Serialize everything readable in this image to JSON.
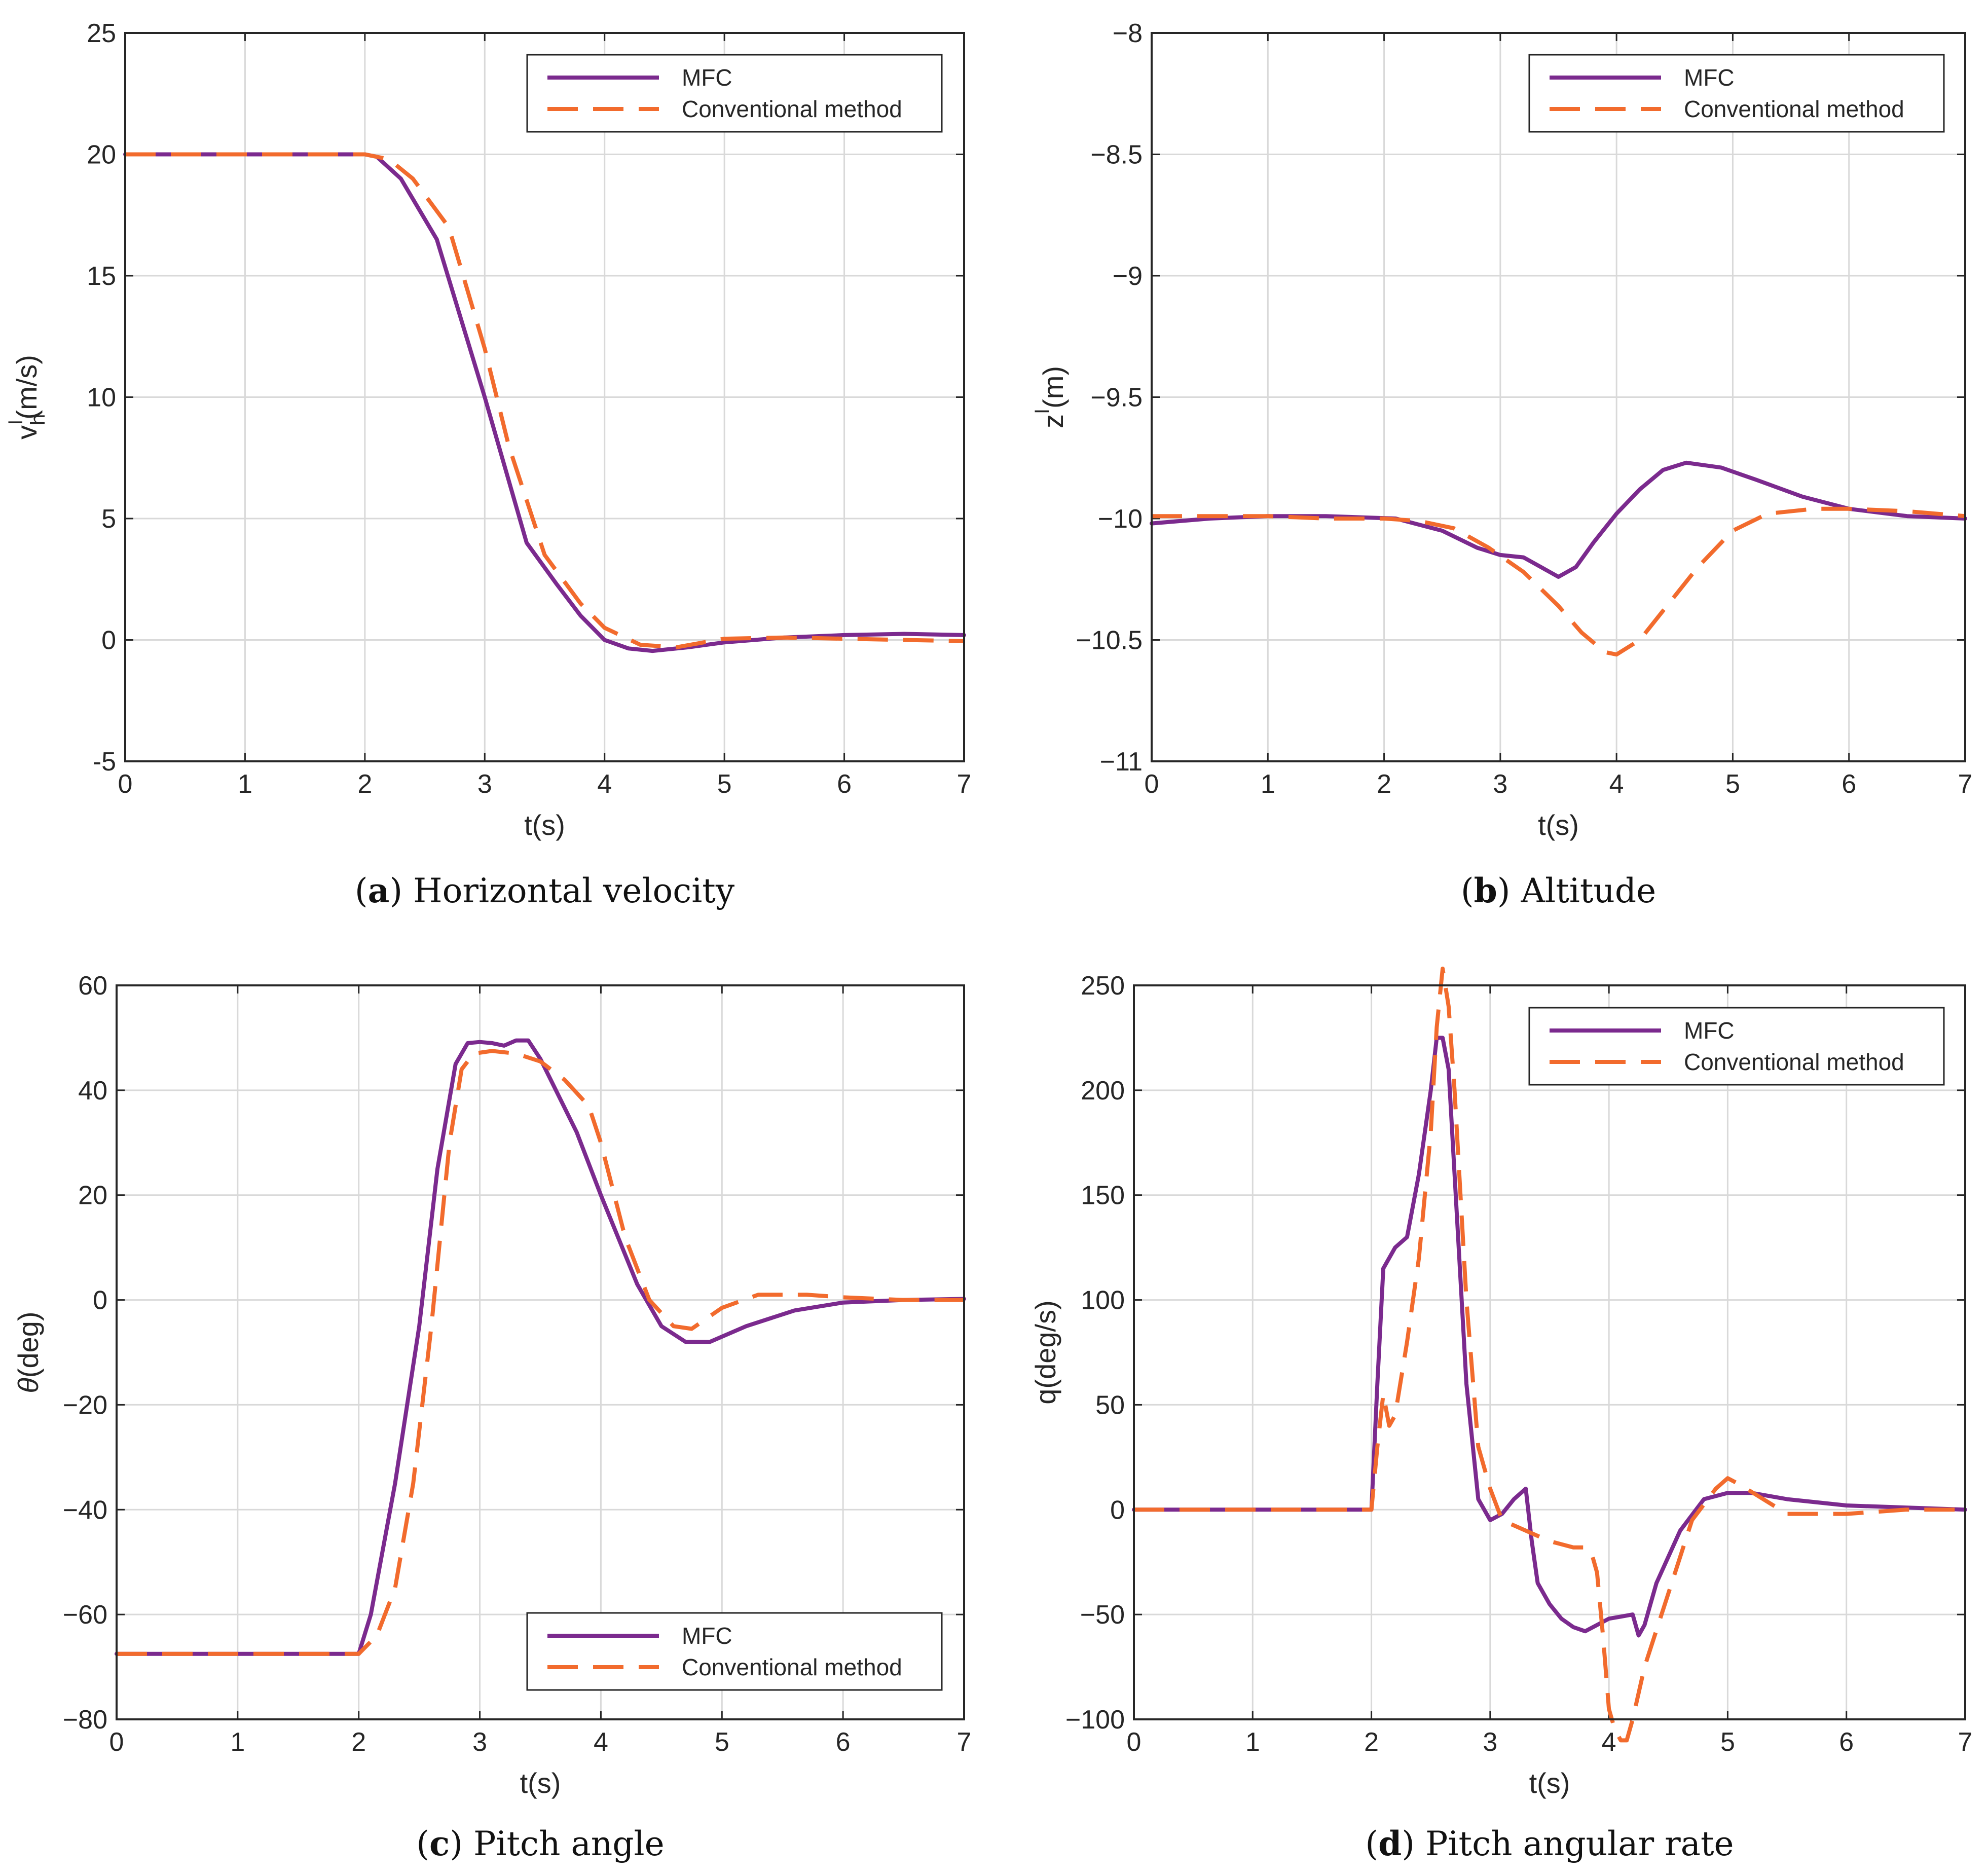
{
  "colors": {
    "mfc": "#7b2a8e",
    "conventional": "#f26b2d",
    "grid": "#d9d9d9",
    "axis": "#262626"
  },
  "chart_data": [
    {
      "id": "a",
      "type": "line",
      "caption_letter": "a",
      "caption_text": " Horizontal velocity",
      "xlabel": "t(s)",
      "ylabel": "v",
      "ylabel_sup": "I",
      "ylabel_sub": "h",
      "ylabel_unit": "(m/s)",
      "xlim": [
        0,
        7
      ],
      "ylim": [
        -5,
        25
      ],
      "xticks": [
        "0",
        "1",
        "2",
        "3",
        "4",
        "5",
        "6",
        "7"
      ],
      "yticks": [
        "-5",
        "0",
        "5",
        "10",
        "15",
        "20",
        "25"
      ],
      "ytick_values": [
        -5,
        0,
        5,
        10,
        15,
        20,
        25
      ],
      "legend": [
        "MFC",
        "Conventional method"
      ],
      "legend_position": "top-right",
      "series": [
        {
          "name": "MFC",
          "style": "solid",
          "x": [
            0,
            1,
            2,
            2.1,
            2.3,
            2.6,
            3.0,
            3.35,
            3.6,
            3.8,
            4.0,
            4.2,
            4.4,
            4.7,
            5.0,
            5.5,
            6.0,
            6.5,
            7.0
          ],
          "y": [
            20,
            20,
            20,
            19.9,
            19,
            16.5,
            10,
            4,
            2.3,
            1.0,
            0,
            -0.35,
            -0.45,
            -0.3,
            -0.1,
            0.1,
            0.2,
            0.25,
            0.2
          ]
        },
        {
          "name": "Conventional method",
          "style": "dashed",
          "x": [
            0,
            1,
            2,
            2.2,
            2.4,
            2.7,
            3.0,
            3.2,
            3.5,
            3.8,
            4.0,
            4.3,
            4.6,
            5.0,
            5.5,
            6.0,
            6.5,
            7.0
          ],
          "y": [
            20,
            20,
            20,
            19.8,
            19,
            17,
            12,
            8,
            3.5,
            1.5,
            0.5,
            -0.2,
            -0.3,
            0.05,
            0.1,
            0.05,
            0,
            -0.05
          ]
        }
      ]
    },
    {
      "id": "b",
      "type": "line",
      "caption_letter": "b",
      "caption_text": " Altitude",
      "xlabel": "t(s)",
      "ylabel": "z",
      "ylabel_sup": "I",
      "ylabel_sub": "",
      "ylabel_unit": "(m)",
      "xlim": [
        0,
        7
      ],
      "ylim": [
        -11,
        -8
      ],
      "xticks": [
        "0",
        "1",
        "2",
        "3",
        "4",
        "5",
        "6",
        "7"
      ],
      "yticks": [
        "−11",
        "−10.5",
        "−10",
        "−9.5",
        "−9",
        "−8.5",
        "−8"
      ],
      "ytick_values": [
        -11,
        -10.5,
        -10,
        -9.5,
        -9,
        -8.5,
        -8
      ],
      "legend": [
        "MFC",
        "Conventional method"
      ],
      "legend_position": "top-right",
      "series": [
        {
          "name": "MFC",
          "style": "solid",
          "x": [
            0,
            0.5,
            1,
            1.5,
            2.1,
            2.5,
            2.8,
            3.0,
            3.2,
            3.35,
            3.5,
            3.65,
            3.8,
            4.0,
            4.2,
            4.4,
            4.6,
            4.9,
            5.2,
            5.6,
            6.0,
            6.5,
            7.0
          ],
          "y": [
            -10.02,
            -10.0,
            -9.99,
            -9.99,
            -10.0,
            -10.05,
            -10.12,
            -10.15,
            -10.16,
            -10.2,
            -10.24,
            -10.2,
            -10.1,
            -9.98,
            -9.88,
            -9.8,
            -9.77,
            -9.79,
            -9.84,
            -9.91,
            -9.96,
            -9.99,
            -10.0
          ]
        },
        {
          "name": "Conventional method",
          "style": "dashed",
          "x": [
            0,
            0.5,
            1,
            1.5,
            2.0,
            2.3,
            2.6,
            2.9,
            3.2,
            3.5,
            3.7,
            3.9,
            4.0,
            4.2,
            4.4,
            4.7,
            5.0,
            5.3,
            5.7,
            6.0,
            6.5,
            7.0
          ],
          "y": [
            -9.99,
            -9.99,
            -9.99,
            -10.0,
            -10.0,
            -10.01,
            -10.04,
            -10.12,
            -10.22,
            -10.36,
            -10.47,
            -10.55,
            -10.56,
            -10.5,
            -10.38,
            -10.2,
            -10.05,
            -9.98,
            -9.96,
            -9.96,
            -9.97,
            -9.99
          ]
        }
      ]
    },
    {
      "id": "c",
      "type": "line",
      "caption_letter": "c",
      "caption_text": " Pitch angle",
      "xlabel": "t(s)",
      "ylabel": "θ",
      "ylabel_sup": "",
      "ylabel_sub": "",
      "ylabel_unit": "(deg)",
      "xlim": [
        0,
        7
      ],
      "ylim": [
        -80,
        60
      ],
      "xticks": [
        "0",
        "1",
        "2",
        "3",
        "4",
        "5",
        "6",
        "7"
      ],
      "yticks": [
        "−80",
        "−60",
        "−40",
        "−20",
        "0",
        "20",
        "40",
        "60"
      ],
      "ytick_values": [
        -80,
        -60,
        -40,
        -20,
        0,
        20,
        40,
        60
      ],
      "legend": [
        "MFC",
        "Conventional method"
      ],
      "legend_position": "bottom-right",
      "series": [
        {
          "name": "MFC",
          "style": "solid",
          "x": [
            0,
            1,
            2.0,
            2.1,
            2.3,
            2.5,
            2.65,
            2.8,
            2.9,
            3.0,
            3.1,
            3.2,
            3.3,
            3.4,
            3.5,
            3.8,
            4.0,
            4.3,
            4.5,
            4.7,
            4.9,
            5.2,
            5.6,
            6.0,
            6.5,
            7.0
          ],
          "y": [
            -67.5,
            -67.5,
            -67.5,
            -60,
            -35,
            -5,
            25,
            45,
            49,
            49.2,
            49,
            48.5,
            49.5,
            49.5,
            46,
            32,
            20,
            3,
            -5,
            -8,
            -8,
            -5,
            -2,
            -0.5,
            0,
            0.2
          ]
        },
        {
          "name": "Conventional method",
          "style": "dashed",
          "x": [
            0,
            1,
            2.0,
            2.15,
            2.3,
            2.45,
            2.6,
            2.75,
            2.85,
            2.95,
            3.1,
            3.3,
            3.5,
            3.7,
            3.9,
            4.0,
            4.2,
            4.4,
            4.6,
            4.75,
            5.0,
            5.3,
            5.7,
            6.0,
            6.5,
            7.0
          ],
          "y": [
            -67.5,
            -67.5,
            -67.5,
            -64,
            -55,
            -35,
            -5,
            30,
            44,
            47,
            47.5,
            47,
            45.5,
            42,
            37,
            30,
            12,
            0,
            -5,
            -5.5,
            -1.5,
            1,
            1,
            0.5,
            0,
            0
          ]
        }
      ]
    },
    {
      "id": "d",
      "type": "line",
      "caption_letter": "d",
      "caption_text": " Pitch angular rate",
      "xlabel": "t(s)",
      "ylabel": "q",
      "ylabel_sup": "",
      "ylabel_sub": "",
      "ylabel_unit": "(deg/s)",
      "xlim": [
        0,
        7
      ],
      "ylim": [
        -100,
        250
      ],
      "xticks": [
        "0",
        "1",
        "2",
        "3",
        "4",
        "5",
        "6",
        "7"
      ],
      "yticks": [
        "−100",
        "−50",
        "0",
        "50",
        "100",
        "150",
        "200",
        "250"
      ],
      "ytick_values": [
        -100,
        -50,
        0,
        50,
        100,
        150,
        200,
        250
      ],
      "legend": [
        "MFC",
        "Conventional method"
      ],
      "legend_position": "top-right",
      "series": [
        {
          "name": "MFC",
          "style": "solid",
          "x": [
            0,
            0.5,
            1.0,
            1.5,
            1.9,
            2.0,
            2.05,
            2.1,
            2.15,
            2.2,
            2.3,
            2.4,
            2.5,
            2.55,
            2.6,
            2.65,
            2.7,
            2.8,
            2.9,
            3.0,
            3.1,
            3.2,
            3.3,
            3.35,
            3.4,
            3.5,
            3.6,
            3.7,
            3.8,
            3.9,
            4.0,
            4.1,
            4.2,
            4.25,
            4.3,
            4.4,
            4.6,
            4.8,
            5.0,
            5.2,
            5.5,
            6.0,
            6.5,
            7.0
          ],
          "y": [
            0,
            0,
            0,
            0,
            0,
            0,
            60,
            115,
            120,
            125,
            130,
            160,
            200,
            225,
            225,
            210,
            160,
            60,
            5,
            -5,
            -2,
            5,
            10,
            -15,
            -35,
            -45,
            -52,
            -56,
            -58,
            -55,
            -52,
            -51,
            -50,
            -60,
            -55,
            -35,
            -10,
            5,
            8,
            8,
            5,
            2,
            1,
            0
          ]
        },
        {
          "name": "Conventional method",
          "style": "dashed",
          "x": [
            0,
            0.5,
            1.0,
            1.5,
            2.0,
            2.05,
            2.1,
            2.15,
            2.2,
            2.3,
            2.4,
            2.5,
            2.55,
            2.6,
            2.65,
            2.7,
            2.75,
            2.8,
            2.9,
            3.0,
            3.1,
            3.3,
            3.5,
            3.7,
            3.8,
            3.85,
            3.9,
            3.95,
            4.0,
            4.05,
            4.1,
            4.15,
            4.2,
            4.3,
            4.5,
            4.7,
            4.9,
            5.0,
            5.1,
            5.3,
            5.5,
            6.0,
            6.5,
            7.0
          ],
          "y": [
            0,
            0,
            0,
            0,
            0,
            30,
            55,
            40,
            45,
            80,
            120,
            180,
            230,
            258,
            240,
            200,
            150,
            100,
            30,
            10,
            -5,
            -10,
            -15,
            -18,
            -18,
            -20,
            -30,
            -60,
            -95,
            -105,
            -110,
            -110,
            -100,
            -75,
            -40,
            -5,
            10,
            15,
            12,
            5,
            -2,
            -2,
            0,
            0
          ]
        }
      ]
    }
  ]
}
